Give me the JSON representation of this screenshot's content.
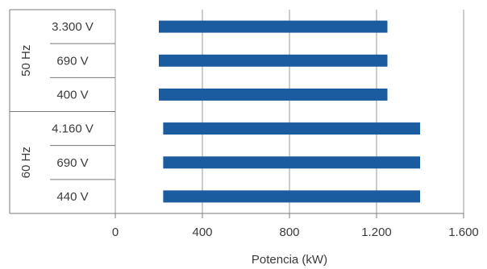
{
  "chart_data": {
    "type": "bar",
    "orientation": "horizontal",
    "bar_style": "floating-range",
    "xlabel": "Potencia (kW)",
    "xlim": [
      0,
      1600
    ],
    "xticks": [
      {
        "value": 0,
        "label": "0"
      },
      {
        "value": 400,
        "label": "400"
      },
      {
        "value": 800,
        "label": "800"
      },
      {
        "value": 1200,
        "label": "1.200"
      },
      {
        "value": 1600,
        "label": "1.600"
      }
    ],
    "grid": "vertical",
    "bar_color": "#1b5b9f",
    "groups": [
      {
        "label": "50 Hz",
        "bars": [
          {
            "label": "3.300 V",
            "start": 200,
            "end": 1250
          },
          {
            "label": "690 V",
            "start": 200,
            "end": 1250
          },
          {
            "label": "400 V",
            "start": 200,
            "end": 1250
          }
        ]
      },
      {
        "label": "60 Hz",
        "bars": [
          {
            "label": "4.160 V",
            "start": 220,
            "end": 1400
          },
          {
            "label": "690 V",
            "start": 220,
            "end": 1400
          },
          {
            "label": "440 V",
            "start": 220,
            "end": 1400
          }
        ]
      }
    ]
  }
}
